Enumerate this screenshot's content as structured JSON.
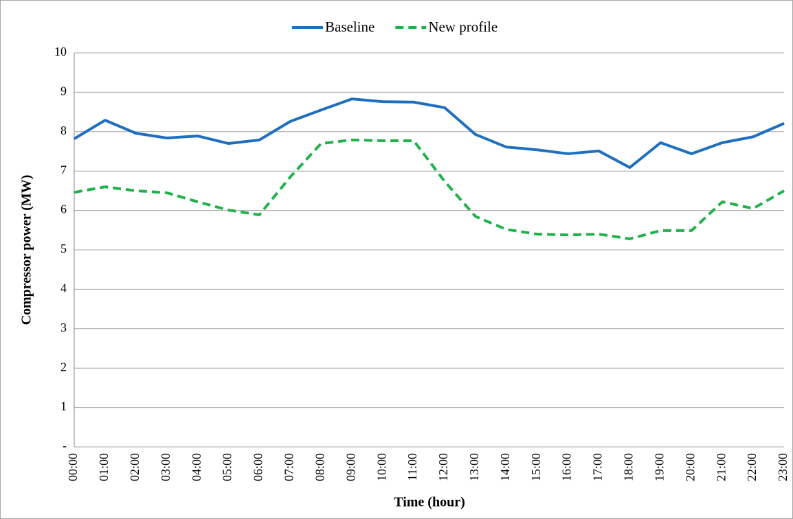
{
  "chart_data": {
    "type": "line",
    "y_label": "Compressor power (MW)",
    "x_label": "Time (hour)",
    "categories": [
      "00:00",
      "01:00",
      "02:00",
      "03:00",
      "04:00",
      "05:00",
      "06:00",
      "07:00",
      "08:00",
      "09:00",
      "10:00",
      "11:00",
      "12:00",
      "13:00",
      "14:00",
      "15:00",
      "16:00",
      "17:00",
      "18:00",
      "19:00",
      "20:00",
      "21:00",
      "22:00",
      "23:00"
    ],
    "series": [
      {
        "name": "Baseline",
        "color": "#1f6fbf",
        "dash": false,
        "values": [
          7.82,
          8.29,
          7.96,
          7.84,
          7.89,
          7.7,
          7.79,
          8.26,
          8.55,
          8.83,
          8.76,
          8.75,
          8.61,
          7.93,
          7.61,
          7.54,
          7.44,
          7.51,
          7.09,
          7.72,
          7.44,
          7.72,
          7.87,
          8.21
        ]
      },
      {
        "name": "New profile",
        "color": "#22b14c",
        "dash": true,
        "values": [
          6.46,
          6.6,
          6.5,
          6.45,
          6.22,
          6.01,
          5.89,
          6.85,
          7.7,
          7.79,
          7.77,
          7.77,
          6.74,
          5.85,
          5.52,
          5.4,
          5.38,
          5.4,
          5.28,
          5.49,
          5.49,
          6.22,
          6.05,
          6.5
        ]
      }
    ],
    "ylim": [
      0,
      10
    ],
    "yticks": [
      {
        "value": 0,
        "label": "-"
      },
      1,
      2,
      3,
      4,
      5,
      6,
      7,
      8,
      9,
      10
    ],
    "grid": true,
    "legend": "top"
  }
}
